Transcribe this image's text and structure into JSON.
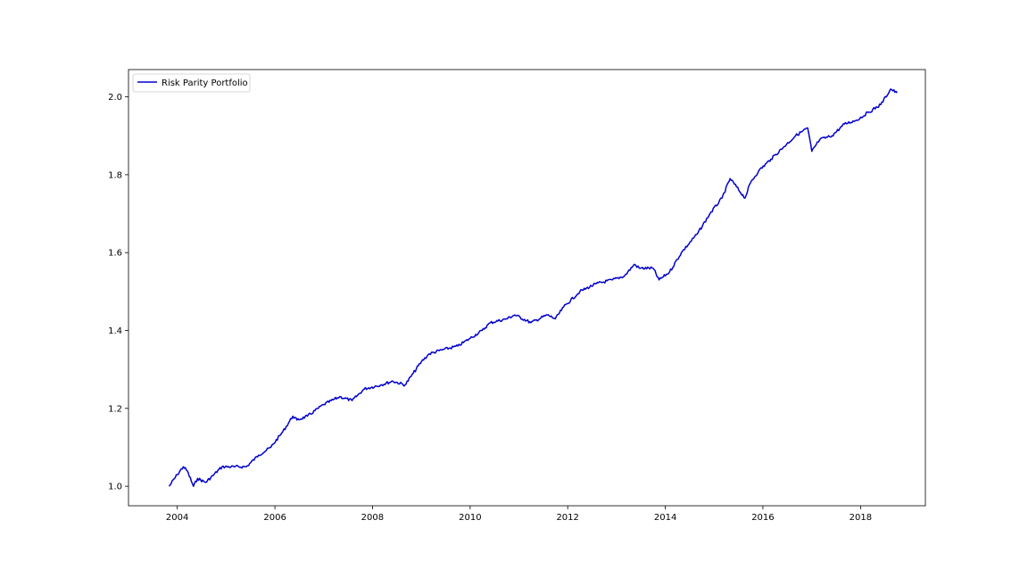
{
  "chart_data": {
    "type": "line",
    "title": "",
    "xlabel": "",
    "ylabel": "",
    "x_axis_type": "date",
    "xlim": [
      "2003-01-01",
      "2019-05-01"
    ],
    "ylim": [
      0.95,
      2.07
    ],
    "x_ticks": [
      "2004",
      "2006",
      "2008",
      "2010",
      "2012",
      "2014",
      "2016",
      "2018"
    ],
    "y_ticks": [
      "1.0",
      "1.2",
      "1.4",
      "1.6",
      "1.8",
      "2.0"
    ],
    "grid": false,
    "legend": {
      "placement": "top-left",
      "entries": [
        "Risk Parity Portfolio"
      ]
    },
    "series": [
      {
        "name": "Risk Parity Portfolio",
        "color": "#0000cc",
        "x": [
          "2003-11-01",
          "2004-01-01",
          "2004-02-15",
          "2004-03-15",
          "2004-05-01",
          "2004-06-01",
          "2004-08-01",
          "2004-10-01",
          "2004-12-01",
          "2005-03-01",
          "2005-06-01",
          "2005-09-01",
          "2005-12-01",
          "2006-03-01",
          "2006-05-15",
          "2006-06-15",
          "2006-09-01",
          "2007-01-01",
          "2007-05-01",
          "2007-08-01",
          "2007-11-01",
          "2008-03-01",
          "2008-06-01",
          "2008-09-01",
          "2008-11-01",
          "2009-01-01",
          "2009-03-01",
          "2009-06-01",
          "2009-10-01",
          "2010-01-01",
          "2010-04-01",
          "2010-06-01",
          "2010-10-01",
          "2010-12-01",
          "2011-04-01",
          "2011-08-01",
          "2011-10-01",
          "2011-12-01",
          "2012-04-01",
          "2012-08-01",
          "2012-12-01",
          "2013-03-01",
          "2013-05-15",
          "2013-06-20",
          "2013-10-01",
          "2013-11-15",
          "2014-02-01",
          "2014-05-01",
          "2014-09-01",
          "2014-12-01",
          "2015-03-01",
          "2015-05-01",
          "2015-08-20",
          "2015-10-01",
          "2015-12-01",
          "2016-03-01",
          "2016-06-01",
          "2016-09-01",
          "2016-12-01",
          "2017-01-01",
          "2017-03-01",
          "2017-06-01",
          "2017-09-01",
          "2017-12-01",
          "2018-03-01",
          "2018-06-01",
          "2018-08-15",
          "2018-10-01"
        ],
        "y": [
          1.0,
          1.03,
          1.05,
          1.04,
          1.0,
          1.02,
          1.01,
          1.03,
          1.05,
          1.05,
          1.05,
          1.08,
          1.1,
          1.14,
          1.18,
          1.17,
          1.18,
          1.21,
          1.23,
          1.22,
          1.25,
          1.26,
          1.27,
          1.26,
          1.29,
          1.32,
          1.34,
          1.35,
          1.36,
          1.38,
          1.4,
          1.42,
          1.43,
          1.44,
          1.42,
          1.44,
          1.43,
          1.46,
          1.5,
          1.52,
          1.53,
          1.54,
          1.57,
          1.56,
          1.56,
          1.53,
          1.55,
          1.6,
          1.65,
          1.7,
          1.74,
          1.79,
          1.74,
          1.78,
          1.81,
          1.84,
          1.87,
          1.9,
          1.92,
          1.86,
          1.89,
          1.9,
          1.93,
          1.94,
          1.96,
          1.98,
          2.02,
          2.01
        ]
      }
    ]
  }
}
